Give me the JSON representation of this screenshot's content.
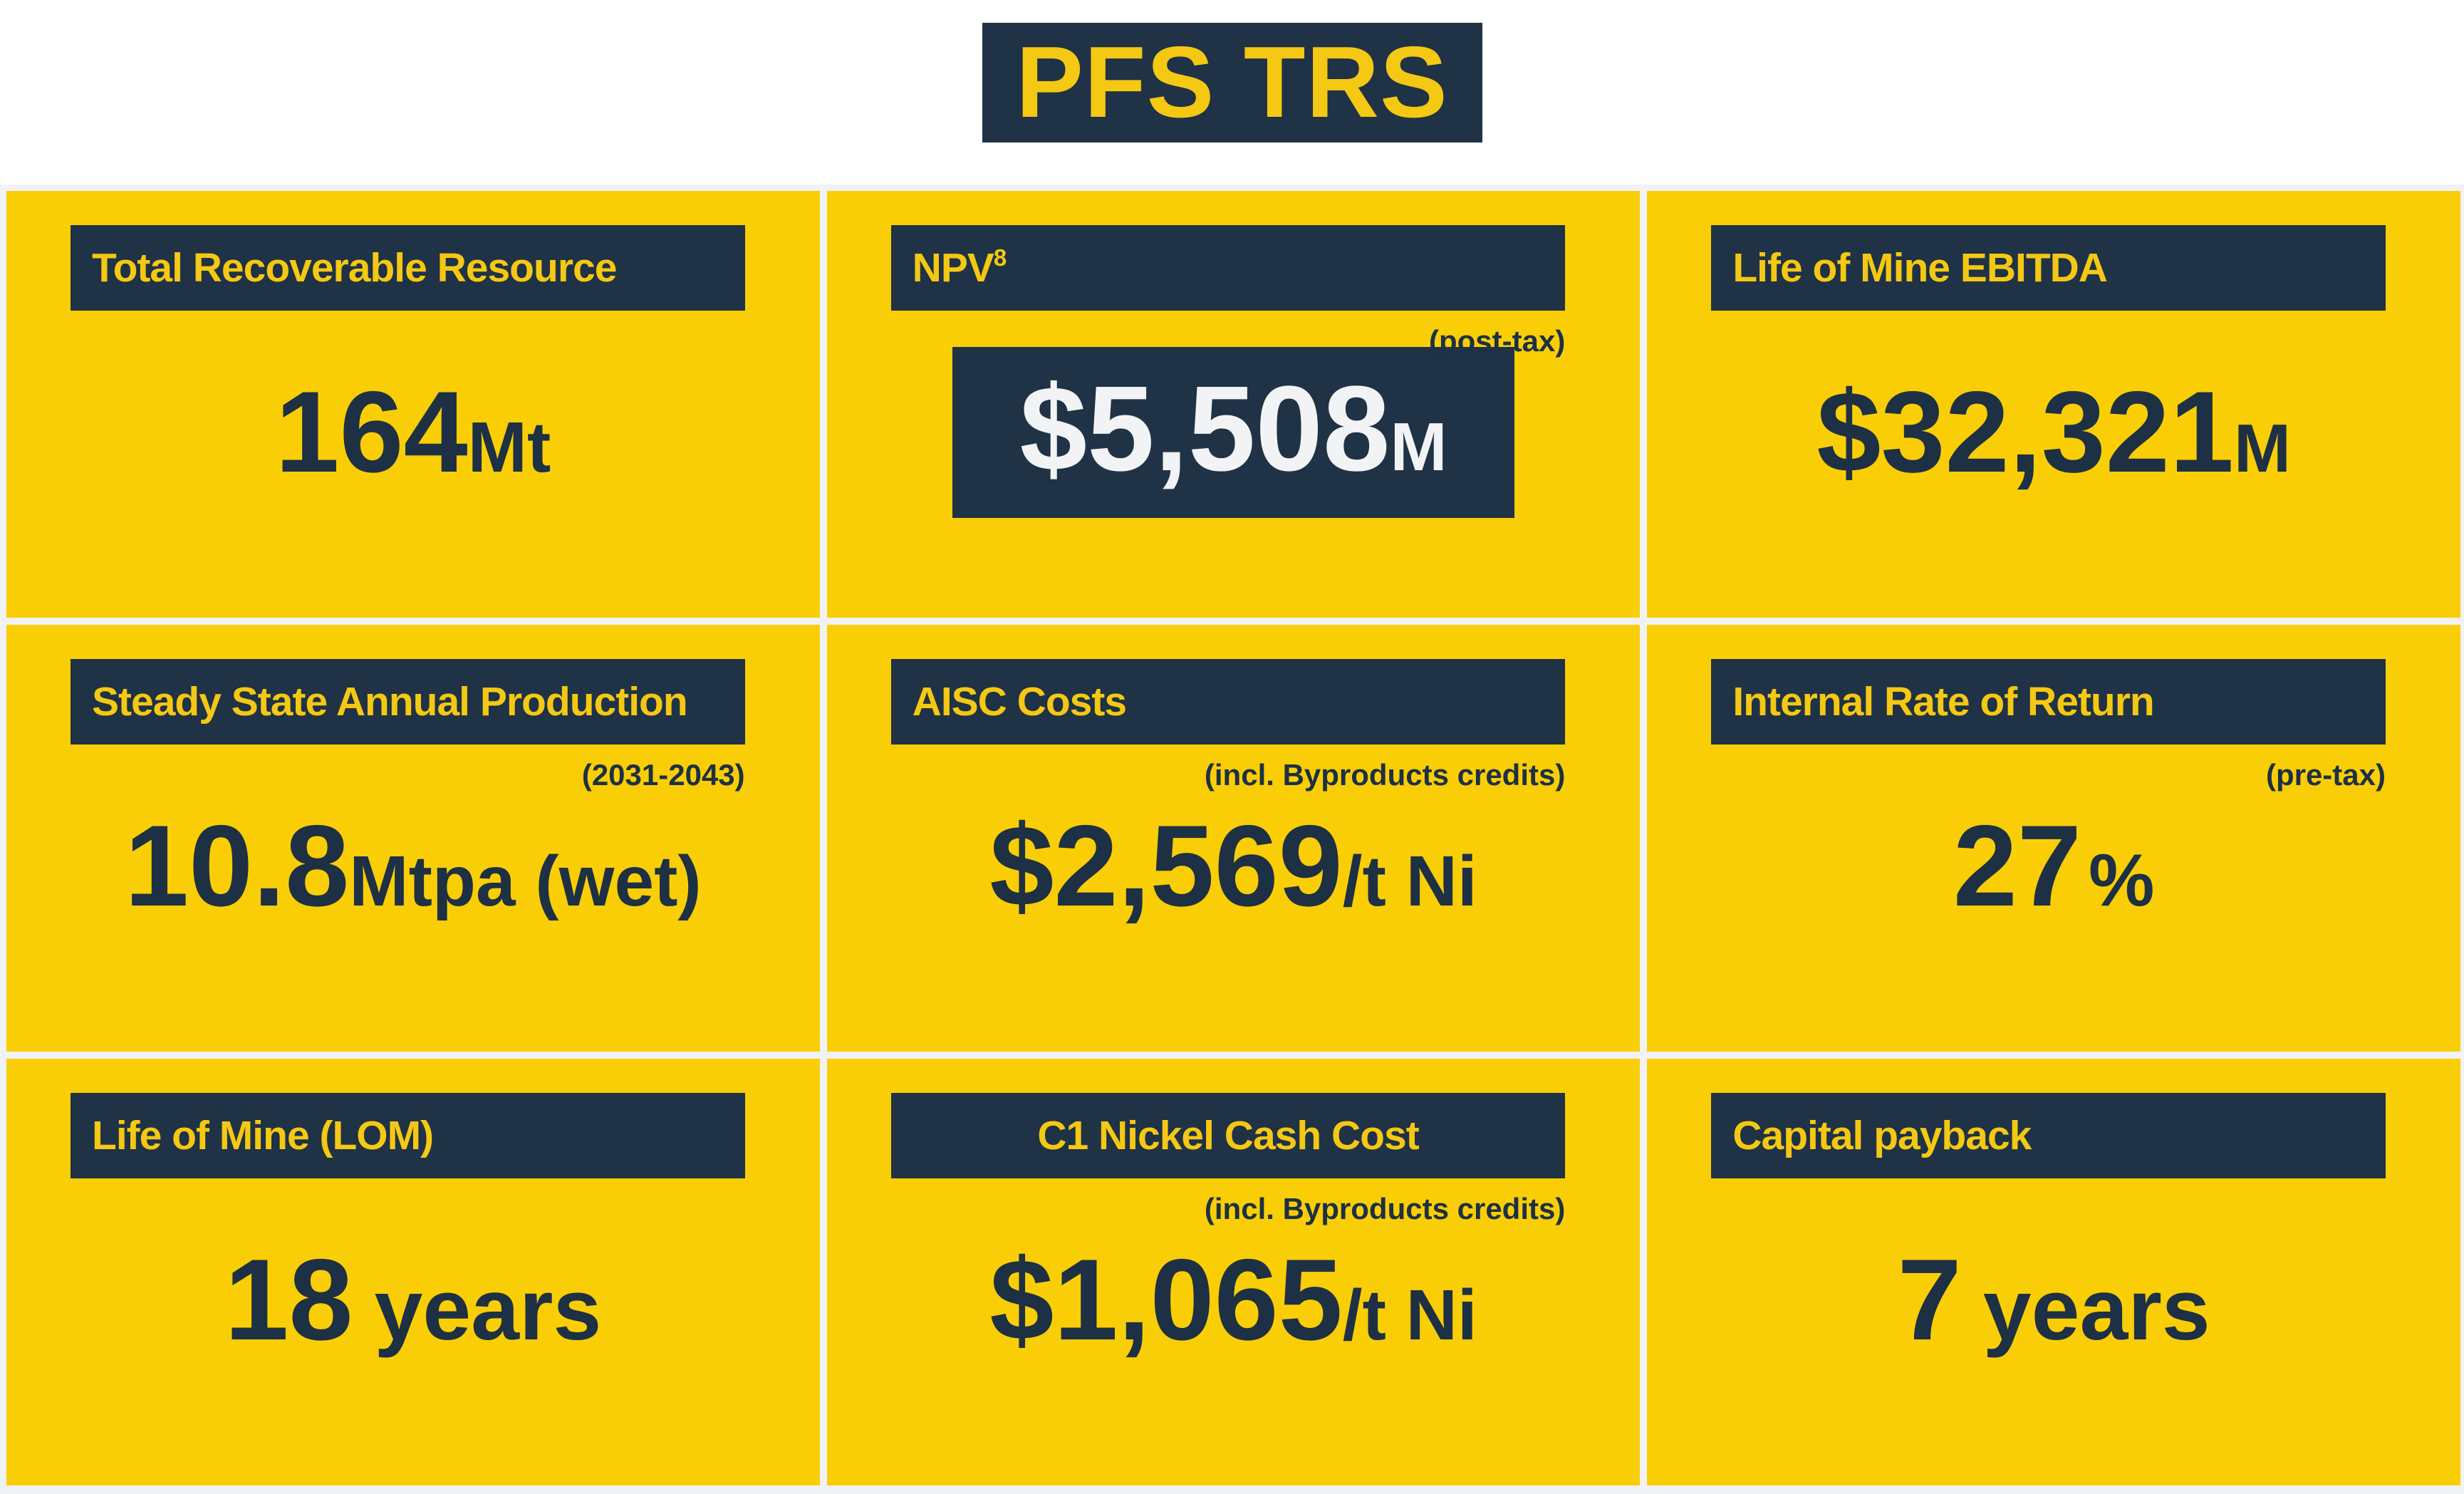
{
  "title": "PFS TRS",
  "colors": {
    "yellow": "#F9CE06",
    "navy": "#1F3246",
    "navy_text": "#1D3044",
    "label_yellow": "#F4C813",
    "white_text": "#F2F3F4",
    "gap_gray": "#F1F2F5",
    "page_bg": "#FFFFFF"
  },
  "cards": [
    {
      "header": "Total Recoverable Resource",
      "header_sup": "",
      "subtext": "",
      "value": "164",
      "unit": "Mt"
    },
    {
      "header": "NPV",
      "header_sup": "8",
      "subtext": "(post-tax)",
      "value": "$5,508",
      "unit": "M"
    },
    {
      "header": "Life of Mine EBITDA",
      "header_sup": "",
      "subtext": "",
      "value": "$32,321",
      "unit": "M"
    },
    {
      "header": "Steady State Annual Production",
      "header_sup": "",
      "subtext": "(2031-2043)",
      "value": "10.8",
      "unit": "Mtpa (wet)"
    },
    {
      "header": "AISC Costs",
      "header_sup": "",
      "subtext": "(incl. Byproducts credits)",
      "value": "$2,569",
      "unit": "/t Ni"
    },
    {
      "header": "Internal Rate of Return",
      "header_sup": "",
      "subtext": "(pre-tax)",
      "value": "27",
      "unit": "%"
    },
    {
      "header": "Life of Mine (LOM)",
      "header_sup": "",
      "subtext": "",
      "value": "18",
      "unit": "years"
    },
    {
      "header": "C1 Nickel Cash Cost",
      "header_sup": "",
      "subtext": "(incl. Byproducts credits)",
      "value": "$1,065",
      "unit": "/t Ni"
    },
    {
      "header": "Capital payback",
      "header_sup": "",
      "subtext": "",
      "value": "7",
      "unit": "years"
    }
  ]
}
